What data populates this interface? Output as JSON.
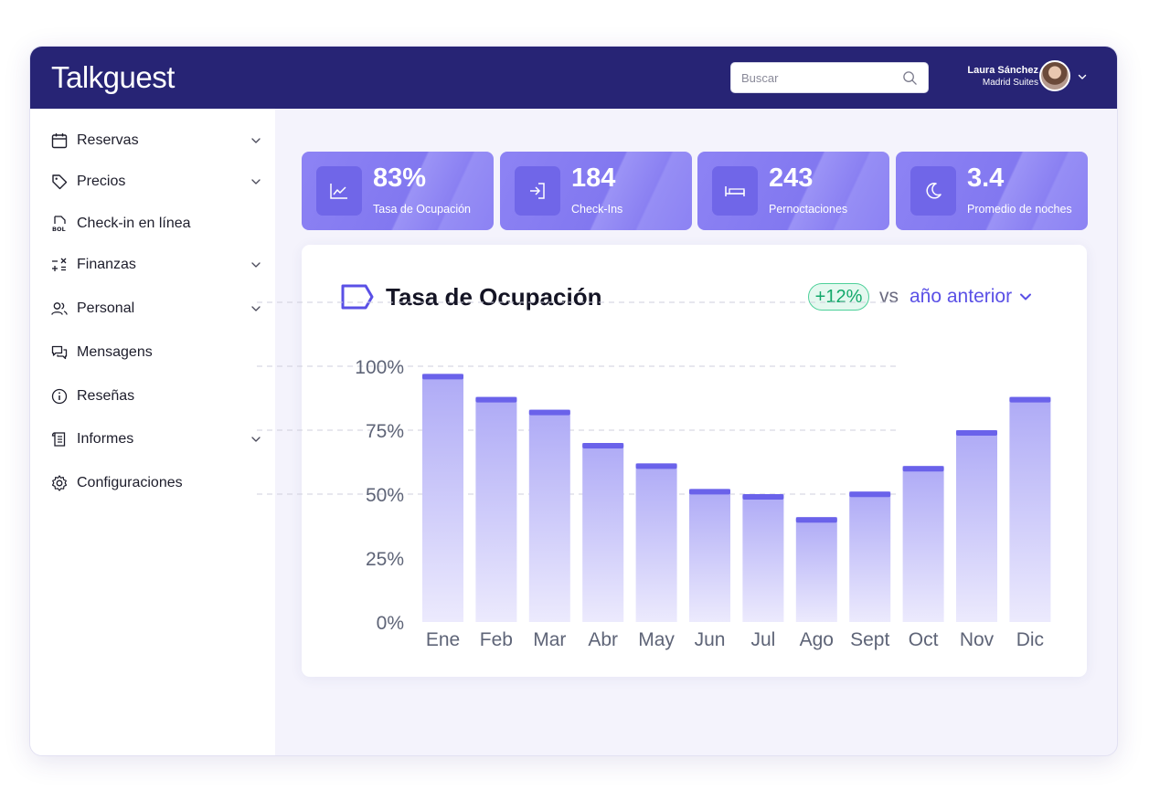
{
  "app": {
    "brand": "Talkguest"
  },
  "header": {
    "search_placeholder": "Buscar",
    "user_name": "Laura Sánchez",
    "user_property": "Madrid Suites"
  },
  "sidebar": {
    "items": [
      {
        "label": "Reservas",
        "icon": "calendar-icon",
        "has_submenu": true
      },
      {
        "label": "Precios",
        "icon": "tag-icon",
        "has_submenu": true
      },
      {
        "label": "Check-in en línea",
        "icon": "document-bol-icon",
        "has_submenu": false
      },
      {
        "label": "Finanzas",
        "icon": "calculator-icon",
        "has_submenu": true
      },
      {
        "label": "Personal",
        "icon": "users-icon",
        "has_submenu": true
      },
      {
        "label": "Mensagens",
        "icon": "chat-icon",
        "has_submenu": false
      },
      {
        "label": "Reseñas",
        "icon": "info-icon",
        "has_submenu": false
      },
      {
        "label": "Informes",
        "icon": "scroll-icon",
        "has_submenu": true
      },
      {
        "label": "Configuraciones",
        "icon": "gear-icon",
        "has_submenu": false
      }
    ]
  },
  "kpis": [
    {
      "value": "83%",
      "label": "Tasa de Ocupación",
      "icon": "line-chart-icon"
    },
    {
      "value": "184",
      "label": "Check-Ins",
      "icon": "sign-in-icon"
    },
    {
      "value": "243",
      "label": "Pernoctaciones",
      "icon": "bed-icon"
    },
    {
      "value": "3.4",
      "label": "Promedio de noches",
      "icon": "moon-icon"
    }
  ],
  "chart_panel": {
    "title": "Tasa de Ocupación",
    "change": "+12%",
    "vs_label": "vs",
    "compare_option": "año anterior"
  },
  "colors": {
    "topbar": "#272475",
    "accent": "#5a50e6",
    "bar_cap": "#6a62ea",
    "positive": "#12a86a"
  },
  "chart_data": {
    "type": "bar",
    "title": "Tasa de Ocupación",
    "categories": [
      "Ene",
      "Feb",
      "Mar",
      "Abr",
      "May",
      "Jun",
      "Jul",
      "Ago",
      "Sept",
      "Oct",
      "Nov",
      "Dic"
    ],
    "values": [
      97,
      88,
      83,
      70,
      62,
      52,
      50,
      41,
      51,
      61,
      75,
      88
    ],
    "yticks": [
      "100%",
      "75%",
      "50%",
      "25%",
      "0%"
    ],
    "ylim": [
      0,
      100
    ],
    "grid": true,
    "xlabel": "",
    "ylabel": ""
  }
}
